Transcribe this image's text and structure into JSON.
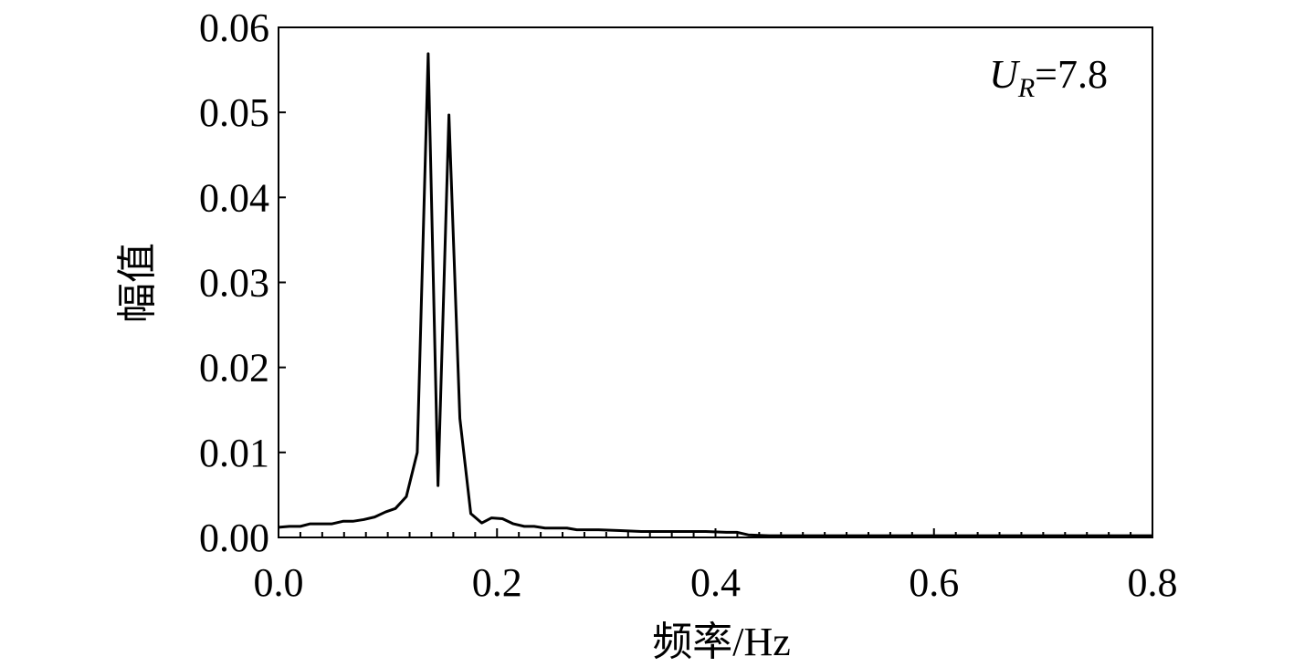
{
  "chart_data": {
    "type": "line",
    "x_label": "频率/Hz",
    "y_label": "幅值",
    "annotation": {
      "main": "U",
      "sub": "R",
      "rest": "=7.8"
    },
    "xlim": [
      0,
      0.8
    ],
    "ylim": [
      0,
      0.06
    ],
    "xticks": [
      {
        "value": 0,
        "label": "0.0"
      },
      0.2,
      0.4,
      0.6,
      0.8
    ],
    "yticks": [
      {
        "value": 0,
        "label": "0.00"
      },
      0.01,
      0.02,
      0.03,
      0.04,
      0.05,
      0.06
    ],
    "series": [
      {
        "color": "#000000",
        "x": [
          0,
          0.01,
          0.02,
          0.029,
          0.039,
          0.049,
          0.059,
          0.068,
          0.078,
          0.088,
          0.098,
          0.107,
          0.117,
          0.127,
          0.137,
          0.146,
          0.156,
          0.166,
          0.176,
          0.186,
          0.195,
          0.205,
          0.215,
          0.225,
          0.234,
          0.244,
          0.254,
          0.264,
          0.273,
          0.293,
          0.313,
          0.332,
          0.352,
          0.371,
          0.391,
          0.41,
          0.42,
          0.43,
          0.449,
          0.5,
          0.6,
          0.7,
          0.8
        ],
        "values": [
          0.0012,
          0.0013,
          0.0013,
          0.0016,
          0.0016,
          0.0016,
          0.0019,
          0.0019,
          0.0021,
          0.0024,
          0.003,
          0.0034,
          0.0048,
          0.01,
          0.0569,
          0.0061,
          0.0497,
          0.014,
          0.0028,
          0.0017,
          0.0023,
          0.0022,
          0.0016,
          0.0013,
          0.0013,
          0.0011,
          0.0011,
          0.0011,
          0.0009,
          0.0009,
          0.0008,
          0.0007,
          0.0007,
          0.0007,
          0.0007,
          0.0006,
          0.0006,
          0.0003,
          0.0002,
          0.0002,
          0.0002,
          0.0002,
          0.0002
        ]
      }
    ]
  }
}
